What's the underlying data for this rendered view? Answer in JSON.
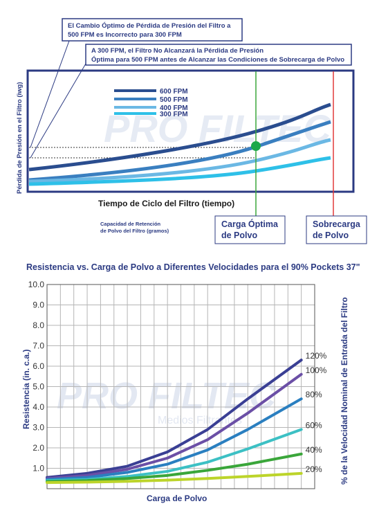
{
  "diagram": {
    "annotations": [
      [
        "El Cambio Óptimo de Pérdida de Presión del Filtro a",
        "500 FPM es Incorrecto para 300 FPM"
      ],
      [
        "A 300 FPM, el Filtro No Alcanzará la Pérdida de Presión",
        "Óptima para 500 FPM antes de Alcanzar las Condiciones de Sobrecarga de Polvo"
      ]
    ],
    "legend": [
      "600 FPM",
      "500 FPM",
      "400 FPM",
      "300 FPM"
    ],
    "y_label": "Pérdida de Presión en el Filtro (iwg)",
    "x_label": "Tiempo de Ciclo del Filtro (tiempo)",
    "capacity_note": [
      "Capacidad de Retención",
      "de Polvo del Filtro (gramos)"
    ],
    "optimal_load": [
      "Carga Óptima",
      "de Polvo"
    ],
    "overload": [
      "Sobrecarga",
      "de Polvo"
    ],
    "watermark": "PRO FILTEC"
  },
  "chart_data": {
    "type": "line",
    "title": "Resistencia vs. Carga de Polvo a Diferentes Velocidades para el 90% Pockets 37\"",
    "x_label": "Carga de Polvo",
    "y_label": "Resistencia (in. c.a.)",
    "y2_label": "% de la Velocidad Nominal de Entrada del Filtro",
    "watermark": "PRO FILTEC",
    "watermark_subtitle": "Medios Filtrantes",
    "x": [
      0,
      3,
      6,
      9,
      12,
      15,
      19
    ],
    "xlim": [
      0,
      20
    ],
    "xticks": [
      0,
      1,
      2,
      3,
      4,
      5,
      6,
      7,
      8,
      9,
      10,
      11,
      12,
      13,
      14,
      15,
      16,
      17,
      18,
      19,
      20
    ],
    "ylim": [
      0,
      10
    ],
    "yticks": [
      {
        "value": 1,
        "label": "1.0"
      },
      {
        "value": 2,
        "label": "2.0"
      },
      {
        "value": 3,
        "label": "3.0"
      },
      {
        "value": 4,
        "label": "4.0"
      },
      {
        "value": 5,
        "label": "5.0"
      },
      {
        "value": 6,
        "label": "6.0"
      },
      {
        "value": 7,
        "label": "7.0"
      },
      {
        "value": 8,
        "label": "8.0"
      },
      {
        "value": 9,
        "label": "9.0"
      },
      {
        "value": 10,
        "label": "10.0"
      }
    ],
    "grid": true,
    "series": [
      {
        "name": "120%",
        "color": "#3a3f94",
        "values": [
          0.55,
          0.75,
          1.1,
          1.8,
          2.9,
          4.4,
          6.3
        ]
      },
      {
        "name": "100%",
        "color": "#6b4fa6",
        "values": [
          0.5,
          0.65,
          0.95,
          1.5,
          2.4,
          3.7,
          5.6
        ]
      },
      {
        "name": "80%",
        "color": "#2a7fc0",
        "values": [
          0.45,
          0.55,
          0.8,
          1.2,
          1.9,
          2.9,
          4.4
        ]
      },
      {
        "name": "60%",
        "color": "#3cc0c4",
        "values": [
          0.4,
          0.45,
          0.6,
          0.85,
          1.3,
          1.95,
          2.9
        ]
      },
      {
        "name": "40%",
        "color": "#3aa63a",
        "values": [
          0.35,
          0.4,
          0.5,
          0.65,
          0.9,
          1.2,
          1.7
        ]
      },
      {
        "name": "20%",
        "color": "#bcd42a",
        "values": [
          0.3,
          0.32,
          0.36,
          0.42,
          0.5,
          0.6,
          0.75
        ]
      }
    ]
  }
}
